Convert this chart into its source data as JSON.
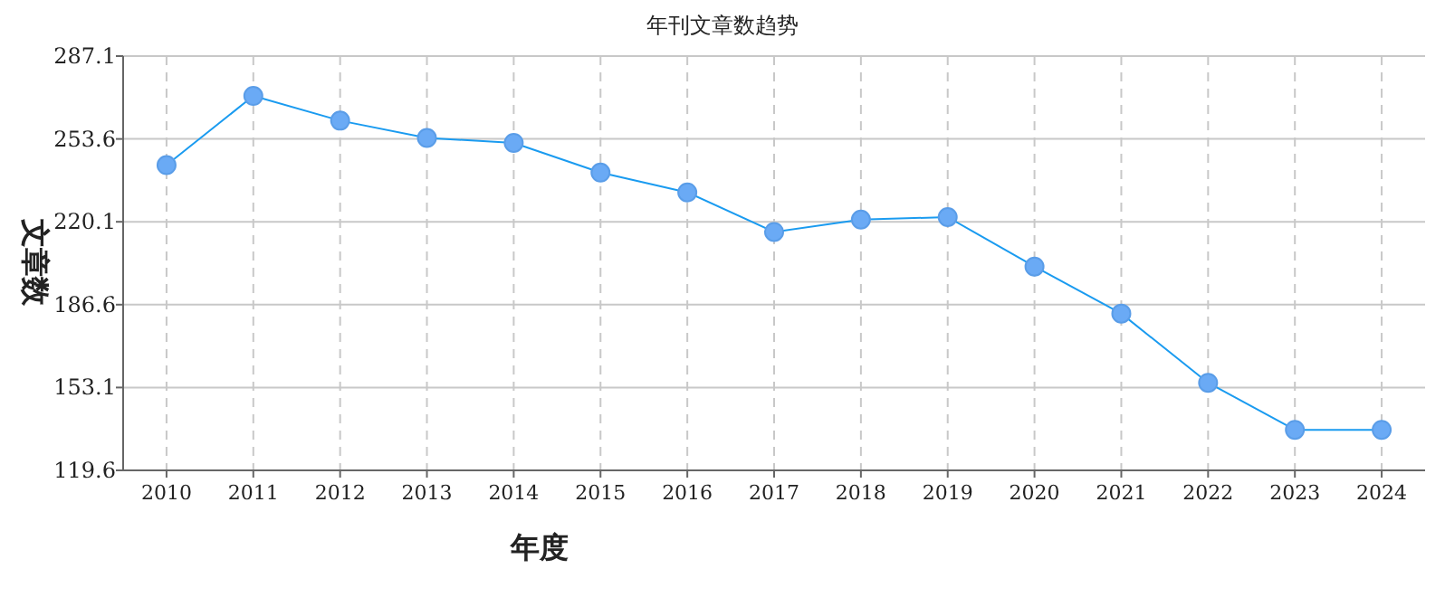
{
  "chart_data": {
    "type": "line",
    "title": "年刊文章数趋势",
    "xlabel": "年度",
    "ylabel": "文章数",
    "categories": [
      "2010",
      "2011",
      "2012",
      "2013",
      "2014",
      "2015",
      "2016",
      "2017",
      "2018",
      "2019",
      "2020",
      "2021",
      "2022",
      "2023",
      "2024"
    ],
    "series": [
      {
        "color": "#1a9bf0",
        "values": [
          243,
          271,
          261,
          254,
          252,
          240,
          232,
          216,
          221,
          222,
          202,
          183,
          155,
          136,
          136
        ]
      }
    ],
    "ylim": [
      119.6,
      287.1
    ],
    "yticks": [
      119.6,
      153.1,
      186.6,
      220.1,
      253.6,
      287.1
    ],
    "grid": true,
    "marker": "circle"
  }
}
